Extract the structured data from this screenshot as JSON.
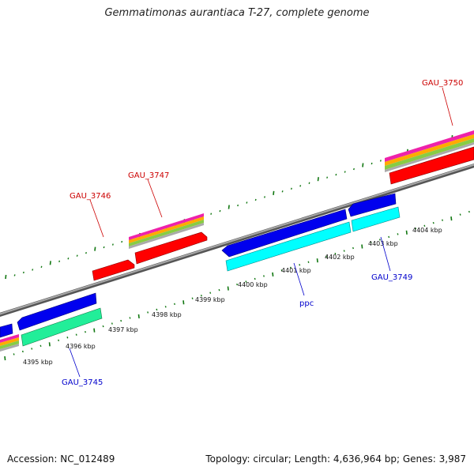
{
  "title": "Gemmatimonas aurantiaca T-27, complete genome",
  "footer": {
    "accession": "Accession: NC_012489",
    "topology": "Topology: circular; Length: 4,636,964 bp; Genes: 3,987"
  },
  "ticks": [
    {
      "label": "4395 kbp"
    },
    {
      "label": "4396 kbp"
    },
    {
      "label": "4397 kbp"
    },
    {
      "label": "4398 kbp"
    },
    {
      "label": "4399 kbp"
    },
    {
      "label": "4400 kbp"
    },
    {
      "label": "4401 kbp"
    },
    {
      "label": "4402 kbp"
    },
    {
      "label": "4403 kbp"
    },
    {
      "label": "4404 kbp"
    }
  ],
  "gene_labels": [
    {
      "name": "GAU_3746",
      "strand": "forward",
      "color": "#cc0000"
    },
    {
      "name": "GAU_3747",
      "strand": "forward",
      "color": "#cc0000"
    },
    {
      "name": "GAU_3750",
      "strand": "forward",
      "color": "#cc0000"
    },
    {
      "name": "GAU_3745",
      "strand": "reverse",
      "color": "#0000cc"
    },
    {
      "name": "ppc",
      "strand": "reverse",
      "color": "#0000cc"
    },
    {
      "name": "GAU_3749",
      "strand": "reverse",
      "color": "#0000cc"
    }
  ],
  "colors": {
    "forward_cds": "#ff0000",
    "reverse_cds": "#0000ee",
    "reverse_rna": "#00ffff",
    "reverse_gene": "#22ee99",
    "backbone": "#888888",
    "tick": "#117711"
  }
}
